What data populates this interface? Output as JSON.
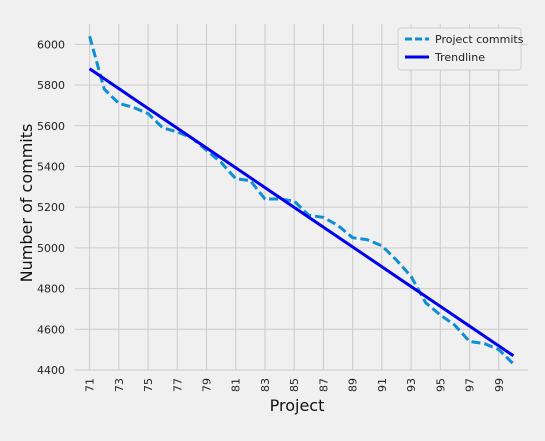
{
  "chart_data": {
    "type": "line",
    "title": "",
    "xlabel": "Project",
    "ylabel": "Number of commits",
    "grid": true,
    "legend_position": "top-right",
    "xlim": [
      70,
      101
    ],
    "ylim": [
      4400,
      6100
    ],
    "xticks": [
      71,
      73,
      75,
      77,
      79,
      81,
      83,
      85,
      87,
      89,
      91,
      93,
      95,
      97,
      99
    ],
    "yticks": [
      4400,
      4600,
      4800,
      5000,
      5200,
      5400,
      5600,
      5800,
      6000
    ],
    "series": [
      {
        "name": "Project commits",
        "style": "dashed",
        "color": "#0d8fd6",
        "x": [
          71,
          72,
          73,
          74,
          75,
          76,
          77,
          78,
          79,
          80,
          81,
          82,
          83,
          84,
          85,
          86,
          87,
          88,
          89,
          90,
          91,
          92,
          93,
          94,
          95,
          96,
          97,
          98,
          99,
          100
        ],
        "y": [
          6040,
          5780,
          5710,
          5690,
          5660,
          5590,
          5570,
          5540,
          5480,
          5420,
          5340,
          5330,
          5240,
          5240,
          5230,
          5160,
          5150,
          5110,
          5050,
          5040,
          5010,
          4940,
          4860,
          4730,
          4670,
          4620,
          4540,
          4530,
          4500,
          4430
        ]
      },
      {
        "name": "Trendline",
        "style": "solid",
        "color": "#0000ee",
        "x": [
          71,
          100
        ],
        "y": [
          5880,
          4470
        ]
      }
    ]
  }
}
